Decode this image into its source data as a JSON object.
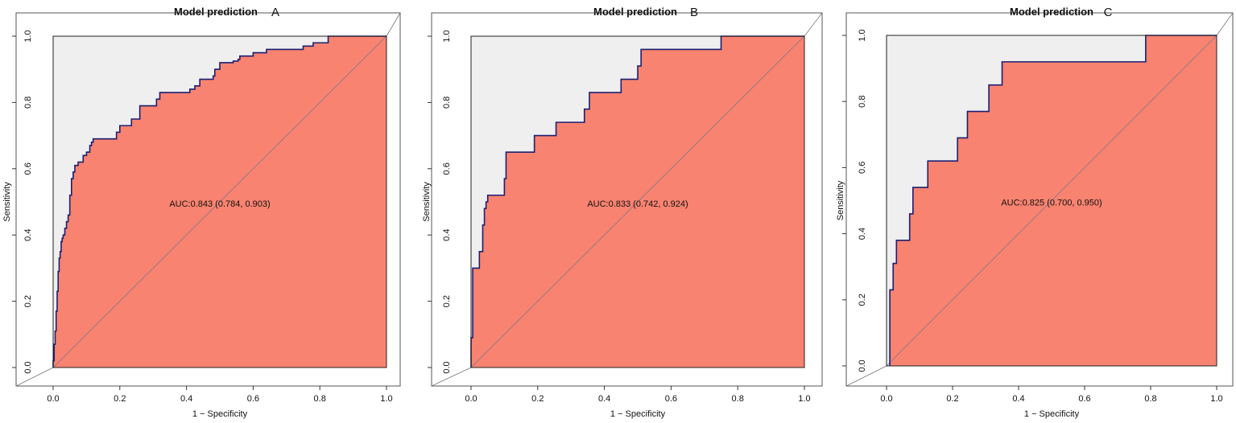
{
  "chart_data": [
    {
      "type": "line",
      "title": "Model prediction",
      "panel_label": "A",
      "xlabel": "1 − Specificity",
      "ylabel": "Sensitivity",
      "xlim": [
        0,
        1
      ],
      "ylim": [
        0,
        1
      ],
      "xticks": [
        "0.0",
        "0.2",
        "0.4",
        "0.6",
        "0.8",
        "1.0"
      ],
      "yticks": [
        "0.0",
        "0.2",
        "0.4",
        "0.6",
        "0.8",
        "1.0"
      ],
      "auc_text": "AUC:0.843 (0.784, 0.903)",
      "colors": {
        "fill": "#f88370",
        "background": "#efefef",
        "curve": "#1b1f73",
        "diagonal": "#6e7690"
      },
      "series": [
        {
          "x": [
            0,
            0,
            0.003,
            0.003,
            0.006,
            0.006,
            0.009,
            0.009,
            0.012,
            0.012,
            0.015,
            0.015,
            0.018,
            0.018,
            0.021,
            0.021,
            0.024,
            0.024,
            0.027,
            0.027,
            0.03,
            0.03,
            0.035,
            0.035,
            0.04,
            0.04,
            0.045,
            0.045,
            0.05,
            0.05,
            0.055,
            0.055,
            0.06,
            0.06,
            0.065,
            0.065,
            0.075,
            0.075,
            0.09,
            0.09,
            0.1,
            0.1,
            0.11,
            0.11,
            0.115,
            0.115,
            0.12,
            0.12,
            0.19,
            0.19,
            0.2,
            0.2,
            0.235,
            0.235,
            0.26,
            0.26,
            0.31,
            0.31,
            0.32,
            0.32,
            0.41,
            0.41,
            0.425,
            0.425,
            0.44,
            0.44,
            0.48,
            0.48,
            0.485,
            0.485,
            0.5,
            0.5,
            0.54,
            0.54,
            0.555,
            0.555,
            0.56,
            0.56,
            0.6,
            0.6,
            0.64,
            0.64,
            0.75,
            0.75,
            0.78,
            0.78,
            0.825,
            0.825,
            1
          ],
          "y": [
            0,
            0.02,
            0.02,
            0.07,
            0.07,
            0.11,
            0.11,
            0.17,
            0.17,
            0.23,
            0.23,
            0.29,
            0.29,
            0.33,
            0.33,
            0.35,
            0.35,
            0.38,
            0.38,
            0.39,
            0.39,
            0.4,
            0.4,
            0.42,
            0.42,
            0.44,
            0.44,
            0.46,
            0.46,
            0.52,
            0.52,
            0.57,
            0.57,
            0.59,
            0.59,
            0.61,
            0.61,
            0.62,
            0.62,
            0.64,
            0.64,
            0.65,
            0.65,
            0.67,
            0.67,
            0.68,
            0.68,
            0.69,
            0.69,
            0.71,
            0.71,
            0.73,
            0.73,
            0.75,
            0.75,
            0.79,
            0.79,
            0.81,
            0.81,
            0.83,
            0.83,
            0.84,
            0.84,
            0.85,
            0.85,
            0.87,
            0.87,
            0.88,
            0.88,
            0.9,
            0.9,
            0.92,
            0.92,
            0.925,
            0.925,
            0.93,
            0.93,
            0.94,
            0.94,
            0.95,
            0.95,
            0.96,
            0.96,
            0.97,
            0.97,
            0.98,
            0.98,
            1,
            1
          ]
        }
      ]
    },
    {
      "type": "line",
      "title": "Model prediction",
      "panel_label": "B",
      "xlabel": "1 − Specificity",
      "ylabel": "Sensitivity",
      "xlim": [
        0,
        1
      ],
      "ylim": [
        0,
        1
      ],
      "xticks": [
        "0.0",
        "0.2",
        "0.4",
        "0.6",
        "0.8",
        "1.0"
      ],
      "yticks": [
        "0.0",
        "0.2",
        "0.4",
        "0.6",
        "0.8",
        "1.0"
      ],
      "auc_text": "AUC:0.833 (0.742, 0.924)",
      "colors": {
        "fill": "#f88370",
        "background": "#efefef",
        "curve": "#1b1f73",
        "diagonal": "#6e7690"
      },
      "series": [
        {
          "x": [
            0,
            0,
            0.005,
            0.005,
            0.025,
            0.025,
            0.035,
            0.035,
            0.04,
            0.04,
            0.045,
            0.045,
            0.05,
            0.05,
            0.1,
            0.1,
            0.105,
            0.105,
            0.19,
            0.19,
            0.255,
            0.255,
            0.34,
            0.34,
            0.355,
            0.355,
            0.45,
            0.45,
            0.5,
            0.5,
            0.51,
            0.51,
            0.75,
            0.75,
            1
          ],
          "y": [
            0,
            0.09,
            0.09,
            0.3,
            0.3,
            0.35,
            0.35,
            0.43,
            0.43,
            0.48,
            0.48,
            0.5,
            0.5,
            0.52,
            0.52,
            0.57,
            0.57,
            0.65,
            0.65,
            0.7,
            0.7,
            0.74,
            0.74,
            0.78,
            0.78,
            0.83,
            0.83,
            0.87,
            0.87,
            0.91,
            0.91,
            0.96,
            0.96,
            1,
            1
          ]
        }
      ]
    },
    {
      "type": "line",
      "title": "Model prediction",
      "panel_label": "C",
      "xlabel": "1 − Specificity",
      "ylabel": "Sensitivity",
      "xlim": [
        0,
        1
      ],
      "ylim": [
        0,
        1
      ],
      "xticks": [
        "0.0",
        "0.2",
        "0.4",
        "0.6",
        "0.8",
        "1.0"
      ],
      "yticks": [
        "0.0",
        "0.2",
        "0.4",
        "0.6",
        "0.8",
        "1.0"
      ],
      "auc_text": "AUC:0.825 (0.700, 0.950)",
      "colors": {
        "fill": "#f88370",
        "background": "#efefef",
        "curve": "#1b1f73",
        "diagonal": "#6e7690"
      },
      "series": [
        {
          "x": [
            0.01,
            0.01,
            0.02,
            0.02,
            0.03,
            0.03,
            0.07,
            0.07,
            0.08,
            0.08,
            0.125,
            0.125,
            0.215,
            0.215,
            0.245,
            0.245,
            0.31,
            0.31,
            0.35,
            0.35,
            0.785,
            0.785,
            1
          ],
          "y": [
            0,
            0.23,
            0.23,
            0.31,
            0.31,
            0.38,
            0.38,
            0.46,
            0.46,
            0.54,
            0.54,
            0.62,
            0.62,
            0.69,
            0.69,
            0.77,
            0.77,
            0.85,
            0.85,
            0.92,
            0.92,
            1,
            1
          ]
        }
      ]
    }
  ]
}
